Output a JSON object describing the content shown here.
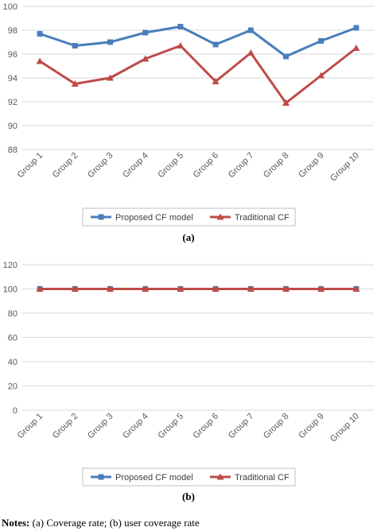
{
  "chart_data": [
    {
      "type": "line",
      "panel_label": "(a)",
      "categories": [
        "Group 1",
        "Group 2",
        "Group 3",
        "Group 4",
        "Group 5",
        "Group 6",
        "Group 7",
        "Group 8",
        "Group 9",
        "Group 10"
      ],
      "ylim": [
        88,
        100
      ],
      "yticks": [
        88,
        90,
        92,
        94,
        96,
        98,
        100
      ],
      "grid": true,
      "legend_position": "bottom",
      "series": [
        {
          "name": "Proposed CF model",
          "color": "#4a7ebb",
          "marker": "square",
          "values": [
            97.7,
            96.7,
            97.0,
            97.8,
            98.3,
            96.8,
            98.0,
            95.8,
            97.1,
            98.2
          ]
        },
        {
          "name": "Traditional CF",
          "color": "#be4b48",
          "marker": "triangle",
          "values": [
            95.4,
            93.5,
            94.0,
            95.6,
            96.7,
            93.7,
            96.1,
            91.9,
            94.2,
            96.5
          ]
        }
      ]
    },
    {
      "type": "line",
      "panel_label": "(b)",
      "categories": [
        "Group 1",
        "Group 2",
        "Group 3",
        "Group 4",
        "Group 5",
        "Group 6",
        "Group 7",
        "Group 8",
        "Group 9",
        "Group 10"
      ],
      "ylim": [
        0,
        120
      ],
      "yticks": [
        0,
        20,
        40,
        60,
        80,
        100,
        120
      ],
      "grid": true,
      "legend_position": "bottom",
      "series": [
        {
          "name": "Proposed CF model",
          "color": "#4a7ebb",
          "marker": "square",
          "values": [
            100,
            100,
            100,
            100,
            100,
            100,
            100,
            100,
            100,
            100
          ]
        },
        {
          "name": "Traditional CF",
          "color": "#be4b48",
          "marker": "triangle",
          "values": [
            100,
            100,
            100,
            100,
            100,
            100,
            100,
            100,
            100,
            100
          ]
        }
      ]
    }
  ],
  "notes": {
    "label": "Notes:",
    "text": " (a) Coverage rate; (b) user coverage rate"
  }
}
